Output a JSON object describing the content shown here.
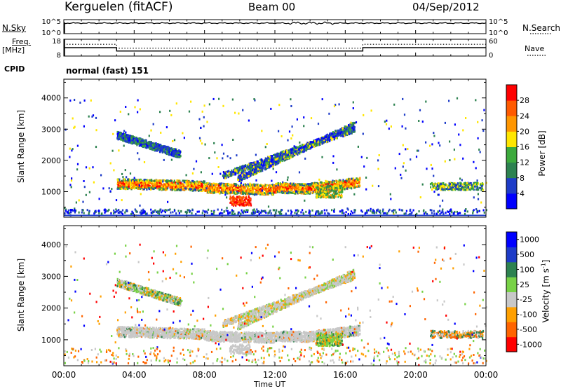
{
  "header": {
    "station": "Kerguelen (fitACF)",
    "beam": "Beam 00",
    "date": "04/Sep/2012"
  },
  "side_labels": {
    "nsky": "N.Sky",
    "nsearch": "N.Search",
    "freq": "Freq.",
    "freq_unit": "[MHz]",
    "nave": "Nave",
    "cpid": "CPID",
    "program": "normal (fast) 151"
  },
  "colors": {
    "power": [
      "#0000ff",
      "#1e3cc8",
      "#2d8250",
      "#3caa3c",
      "#ffe600",
      "#ff9600",
      "#ff5a00",
      "#ff0000"
    ],
    "velocity": [
      "#ff0000",
      "#ff6400",
      "#ffa000",
      "#c8c8c8",
      "#78d246",
      "#2d8250",
      "#1e3cc8",
      "#0000ff"
    ]
  },
  "chart_data": [
    {
      "type": "line",
      "name": "nsky-nsearch",
      "left_ticks": [
        "10^5",
        "10^0"
      ],
      "right_ticks": [
        "10^5",
        "10^0"
      ],
      "series": [
        {
          "name": "N.Sky",
          "x": [
            0,
            24
          ],
          "y": [
            100000,
            100000
          ]
        },
        {
          "name": "N.Search",
          "x": [
            0,
            24
          ],
          "y": [
            100000,
            100000
          ]
        }
      ]
    },
    {
      "type": "line",
      "name": "freq-nave",
      "left_ticks": [
        "18",
        "8"
      ],
      "right_ticks": [
        "60",
        "0"
      ],
      "ylim_left": [
        8,
        18
      ],
      "ylim_right": [
        0,
        60
      ],
      "series": [
        {
          "name": "Freq.",
          "x": [
            0,
            3,
            3,
            17,
            17,
            24
          ],
          "y": [
            13,
            13,
            11,
            11,
            13,
            13
          ]
        },
        {
          "name": "Nave",
          "x": [
            0,
            3,
            3,
            17,
            17,
            24
          ],
          "y": [
            42,
            42,
            28,
            28,
            42,
            42
          ]
        }
      ]
    },
    {
      "type": "heatmap",
      "name": "power",
      "xlabel": "",
      "ylabel": "Slant Range [km]",
      "yticks": [
        "1000",
        "2000",
        "3000",
        "4000"
      ],
      "ylim": [
        180,
        4600
      ],
      "colorbar": {
        "label": "Power [dB]",
        "ticks": [
          "4",
          "8",
          "12",
          "16",
          "20",
          "24",
          "28"
        ]
      },
      "structures": [
        {
          "feature": "main echo band",
          "x": [
            3.0,
            16.8
          ],
          "range_km": [
            1000,
            1500
          ],
          "power_db": [
            12,
            28
          ]
        },
        {
          "feature": "upper arc",
          "x": [
            3.0,
            6.5
          ],
          "range_km": [
            2000,
            2900
          ],
          "power_db": [
            4,
            12
          ]
        },
        {
          "feature": "rising arc",
          "x": [
            9.0,
            16.5
          ],
          "range_km": [
            1500,
            3500
          ],
          "power_db": [
            4,
            16
          ]
        },
        {
          "feature": "late patch",
          "x": [
            20.8,
            23.8
          ],
          "range_km": [
            1000,
            1300
          ],
          "power_db": [
            8,
            16
          ]
        }
      ]
    },
    {
      "type": "heatmap",
      "name": "velocity",
      "xlabel": "Time UT",
      "ylabel": "Slant Range [km]",
      "xticks": [
        "00:00",
        "04:00",
        "08:00",
        "12:00",
        "16:00",
        "20:00",
        "00:00"
      ],
      "yticks": [
        "1000",
        "2000",
        "3000",
        "4000"
      ],
      "ylim": [
        180,
        4600
      ],
      "colorbar": {
        "label": "Velocity [m s",
        "label_sup": "-1",
        "label_end": "]",
        "ticks": [
          "1000",
          "500",
          "100",
          "25",
          "-25",
          "-100",
          "-500",
          "-1000"
        ]
      },
      "structures": [
        {
          "feature": "main echo band",
          "x": [
            3.0,
            16.8
          ],
          "range_km": [
            1000,
            1500
          ],
          "velocity_ms": [
            -25,
            25
          ]
        },
        {
          "feature": "upper arc",
          "x": [
            3.0,
            6.5
          ],
          "range_km": [
            2000,
            2900
          ],
          "velocity_ms": [
            -100,
            500
          ]
        },
        {
          "feature": "rising arc",
          "x": [
            9.0,
            16.5
          ],
          "range_km": [
            1500,
            3500
          ],
          "velocity_ms": [
            -25,
            25
          ]
        },
        {
          "feature": "late patch",
          "x": [
            20.8,
            23.8
          ],
          "range_km": [
            1000,
            1300
          ],
          "velocity_ms": [
            -100,
            100
          ]
        }
      ]
    }
  ]
}
